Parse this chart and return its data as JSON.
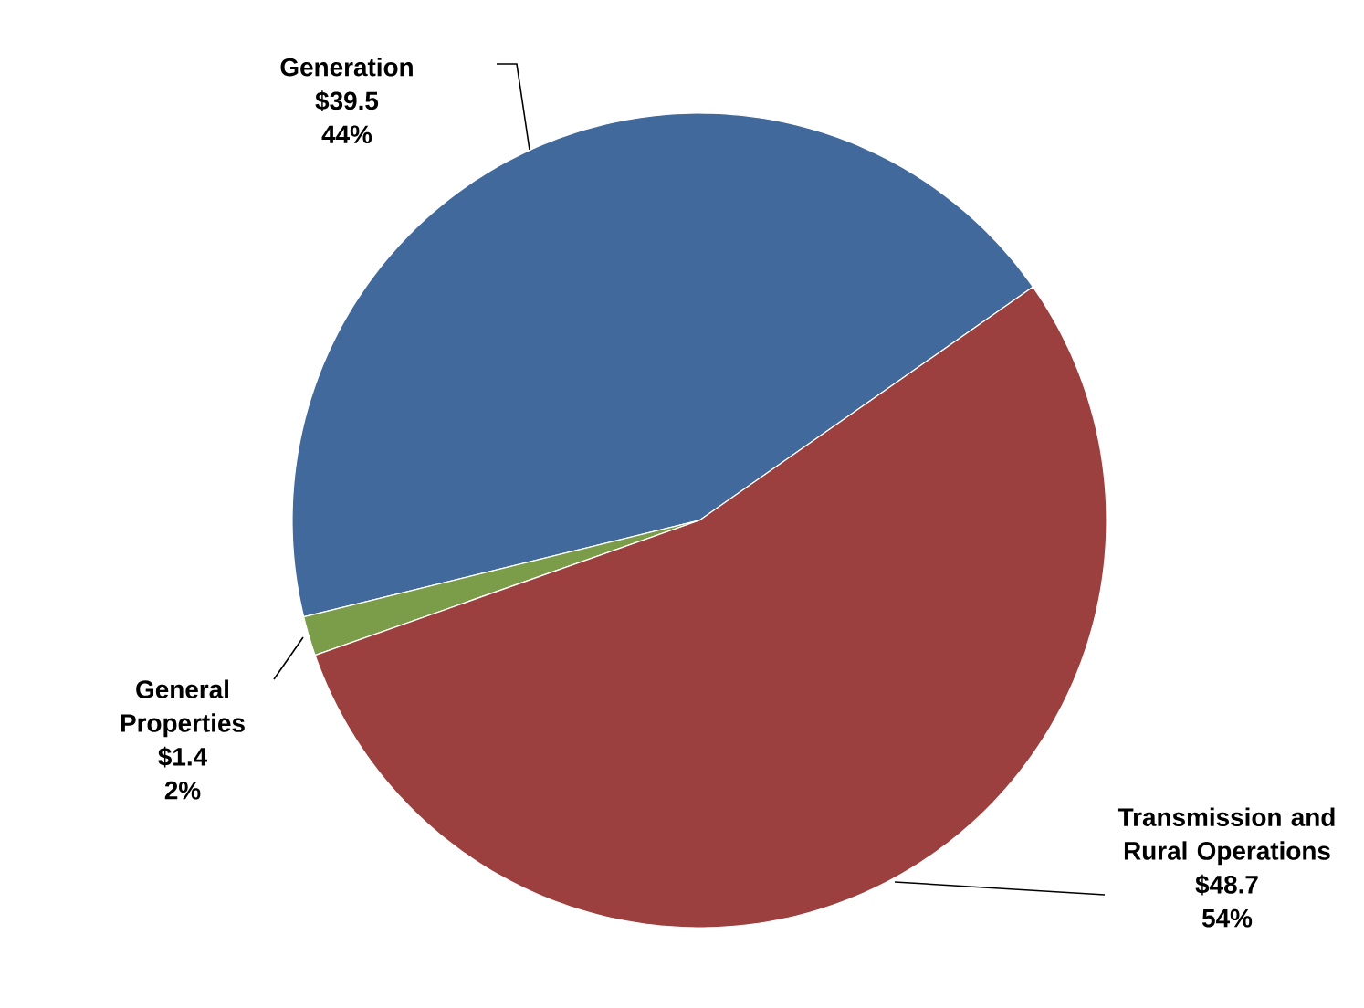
{
  "chart_data": {
    "type": "pie",
    "categories": [
      "Generation",
      "General Properties",
      "Transmission and Rural Operations"
    ],
    "values": [
      39.5,
      1.4,
      48.7
    ],
    "value_labels": [
      "$39.5 44%",
      "$1.4 2%",
      "$48.7 54%"
    ],
    "colors": [
      "#41699b",
      "#7b9c48",
      "#9b403e"
    ]
  }
}
